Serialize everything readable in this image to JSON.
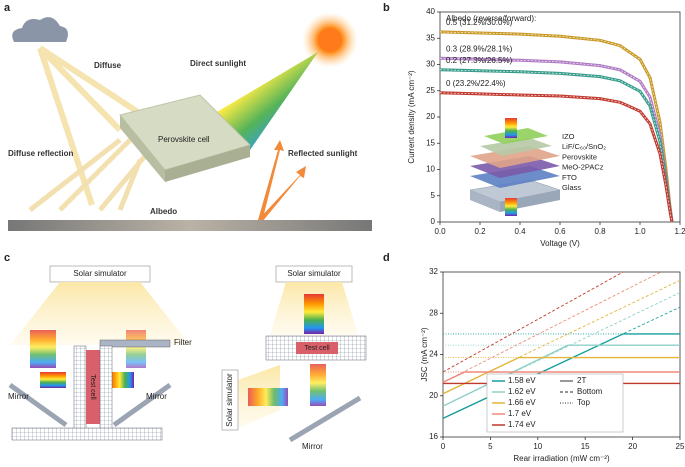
{
  "diagram_a": {
    "label": "a",
    "diffuse": "Diffuse",
    "direct": "Direct sunlight",
    "cell": "Perovskite cell",
    "diffuse_reflection": "Diffuse reflection",
    "reflected": "Reflected sunlight",
    "albedo": "Albedo"
  },
  "diagram_c": {
    "label": "c",
    "simulator": [
      "Solar simulator",
      "Solar simulator",
      "Solar simulator"
    ],
    "filter": "Filter",
    "mirror": [
      "Mirror",
      "Mirror",
      "Mirror"
    ],
    "test_cell": [
      "Test cell",
      "Test cell"
    ]
  },
  "chart_data": [
    {
      "type": "line",
      "label": "b",
      "title": "Albedo (reverse/forward):",
      "x_label": "Voltage (V)",
      "y_label": "Current density (mA cm⁻²)",
      "xlim": [
        0,
        1.2
      ],
      "ylim": [
        0,
        40
      ],
      "xticks": [
        {
          "value": 0,
          "label": "0.0"
        },
        {
          "value": 0.2,
          "label": "0.2"
        },
        {
          "value": 0.4,
          "label": "0.4"
        },
        {
          "value": 0.6,
          "label": "0.6"
        },
        {
          "value": 0.8,
          "label": "0.8"
        },
        {
          "value": 1,
          "label": "1.0"
        },
        {
          "value": 1.2,
          "label": "1.2"
        }
      ],
      "yticks": [
        0,
        5,
        10,
        15,
        20,
        25,
        30,
        35,
        40
      ],
      "x": [
        0,
        0.2,
        0.4,
        0.6,
        0.8,
        0.9,
        1.0,
        1.05,
        1.1,
        1.13,
        1.15,
        1.16
      ],
      "series": [
        {
          "name": "0.5 (31.2%/30.0%)",
          "color": "#c99a27",
          "values": [
            36.2,
            36.0,
            35.8,
            35.4,
            34.6,
            33.6,
            31.0,
            27.5,
            19.0,
            10.0,
            3.0,
            0
          ]
        },
        {
          "name": "0.3 (28.9%/28.1%)",
          "color": "#b07cc4",
          "values": [
            31.2,
            31.0,
            30.8,
            30.5,
            29.8,
            29.0,
            26.8,
            23.8,
            16.5,
            8.7,
            2.6,
            0
          ]
        },
        {
          "name": "0.2 (27.3%/26.5%)",
          "color": "#3a9d8c",
          "values": [
            29.0,
            28.8,
            28.6,
            28.3,
            27.7,
            26.9,
            24.9,
            22.1,
            15.3,
            8.1,
            2.4,
            0
          ]
        },
        {
          "name": "0 (23.2%/22.4%)",
          "color": "#c23b30",
          "values": [
            24.6,
            24.4,
            24.2,
            24.0,
            23.5,
            22.8,
            21.1,
            18.7,
            13.0,
            6.9,
            2.0,
            0
          ]
        }
      ],
      "inset_layers": [
        "IZO",
        "LiF/C₆₀/SnO₂",
        "Perovskite",
        "MeO-2PACz",
        "FTO",
        "Glass"
      ]
    },
    {
      "type": "line",
      "label": "d",
      "x_label": "Rear irradiation (mW cm⁻²)",
      "y_label": "JSC (mA cm⁻²)",
      "xlim": [
        0,
        25
      ],
      "ylim": [
        16,
        32
      ],
      "xticks": [
        0,
        5,
        10,
        15,
        20,
        25
      ],
      "yticks": [
        16,
        20,
        24,
        28,
        32
      ],
      "line_styles": [
        {
          "name": "2T",
          "dash": "solid"
        },
        {
          "name": "Bottom",
          "dash": "dashed"
        },
        {
          "name": "Top",
          "dash": "dotted"
        }
      ],
      "series": [
        {
          "name": "1.58 eV",
          "color": "#179e9e",
          "two_t": {
            "x": [
              0,
              19,
              25
            ],
            "values": [
              17.8,
              26.0,
              26.0
            ]
          },
          "bottom": {
            "x": [
              0,
              25
            ],
            "values": [
              17.8,
              28.6
            ]
          },
          "top": {
            "x": [
              0,
              25
            ],
            "values": [
              26.0,
              26.0
            ]
          }
        },
        {
          "name": "1.62 eV",
          "color": "#8fd0c8",
          "two_t": {
            "x": [
              0,
              13.2,
              25
            ],
            "values": [
              19.0,
              24.9,
              24.9
            ]
          },
          "bottom": {
            "x": [
              0,
              25
            ],
            "values": [
              19.0,
              30.0
            ]
          },
          "top": {
            "x": [
              0,
              25
            ],
            "values": [
              24.9,
              24.9
            ]
          }
        },
        {
          "name": "1.66 eV",
          "color": "#e4b53a",
          "two_t": {
            "x": [
              0,
              8,
              25
            ],
            "values": [
              20.2,
              23.7,
              23.7
            ]
          },
          "bottom": {
            "x": [
              0,
              25
            ],
            "values": [
              20.2,
              31.2
            ]
          },
          "top": {
            "x": [
              0,
              25
            ],
            "values": [
              23.7,
              23.7
            ]
          }
        },
        {
          "name": "1.7 eV",
          "color": "#f08a7c",
          "two_t": {
            "x": [
              0,
              2.3,
              25
            ],
            "values": [
              21.3,
              22.3,
              22.3
            ]
          },
          "bottom": {
            "x": [
              0,
              23
            ],
            "values": [
              21.3,
              32
            ]
          },
          "top": {
            "x": [
              0,
              25
            ],
            "values": [
              22.3,
              22.3
            ]
          }
        },
        {
          "name": "1.74 eV",
          "color": "#c0392b",
          "two_t": {
            "x": [
              0,
              25
            ],
            "values": [
              21.2,
              21.2
            ]
          },
          "bottom": {
            "x": [
              0,
              19
            ],
            "values": [
              22.3,
              32
            ]
          },
          "top": {
            "x": [
              0,
              25
            ],
            "values": [
              21.2,
              21.2
            ]
          }
        }
      ]
    }
  ]
}
